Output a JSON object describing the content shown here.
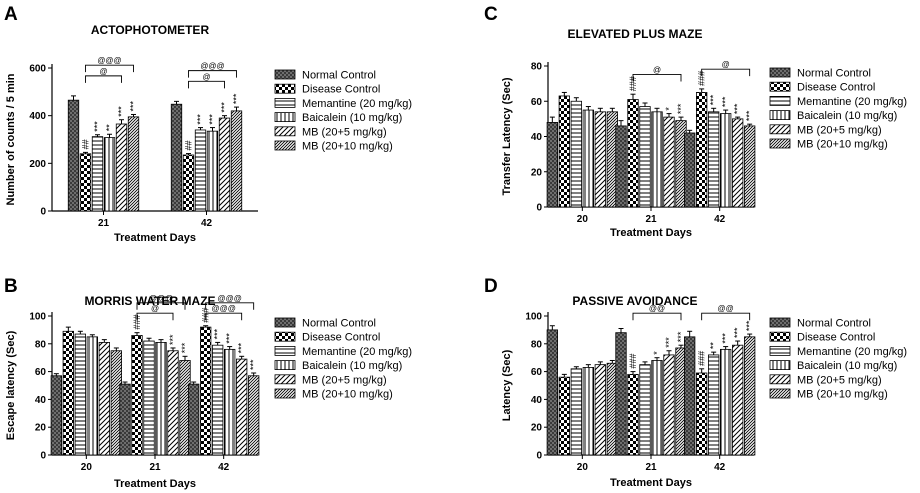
{
  "legend": [
    "Normal Control",
    "Disease Control",
    "Memantine (20 mg/kg)",
    "Baicalein (10 mg/kg)",
    "MB (20+5 mg/kg)",
    "MB (20+10 mg/kg)"
  ],
  "chart_data": [
    {
      "panel": "A",
      "type": "bar",
      "title": "ACTOPHOTOMETER",
      "xlabel": "Treatment Days",
      "ylabel": "Number of counts / 5 min",
      "ylim": [
        0,
        600
      ],
      "yticks": [
        0,
        200,
        400,
        600
      ],
      "categories": [
        "21",
        "42"
      ],
      "series": [
        {
          "name": "Normal Control",
          "values": [
            465,
            448
          ],
          "errors": [
            18,
            12
          ]
        },
        {
          "name": "Disease Control",
          "values": [
            240,
            235
          ],
          "errors": [
            6,
            6
          ]
        },
        {
          "name": "Memantine (20 mg/kg)",
          "values": [
            312,
            340
          ],
          "errors": [
            8,
            10
          ]
        },
        {
          "name": "Baicalein (10 mg/kg)",
          "values": [
            308,
            335
          ],
          "errors": [
            14,
            15
          ]
        },
        {
          "name": "MB (20+5 mg/kg)",
          "values": [
            365,
            390
          ],
          "errors": [
            18,
            10
          ]
        },
        {
          "name": "MB (20+10 mg/kg)",
          "values": [
            395,
            420
          ],
          "errors": [
            10,
            16
          ]
        }
      ],
      "significance": [
        [
          "",
          "##",
          "***",
          "**",
          "***",
          "***"
        ],
        [
          "",
          "##",
          "***",
          "***",
          "***",
          "***"
        ]
      ],
      "brackets": [
        {
          "group": 0,
          "to": 4,
          "label": "@",
          "level": 0
        },
        {
          "group": 0,
          "to": 5,
          "label": "@@@",
          "level": 1
        },
        {
          "group": 1,
          "to": 4,
          "label": "@",
          "level": 0
        },
        {
          "group": 1,
          "to": 5,
          "label": "@@@",
          "level": 1
        }
      ]
    },
    {
      "panel": "C",
      "type": "bar",
      "title": "ELEVATED PLUS MAZE",
      "xlabel": "Treatment Days",
      "ylabel": "Transfer Latency (Sec)",
      "ylim": [
        0,
        80
      ],
      "yticks": [
        0,
        20,
        40,
        60,
        80
      ],
      "categories": [
        "20",
        "21",
        "42"
      ],
      "series": [
        {
          "name": "Normal Control",
          "values": [
            48,
            46,
            42
          ],
          "errors": [
            3,
            3,
            1.5
          ]
        },
        {
          "name": "Disease Control",
          "values": [
            63,
            61,
            65
          ],
          "errors": [
            2,
            3,
            2
          ]
        },
        {
          "name": "Memantine (20 mg/kg)",
          "values": [
            60,
            57,
            54
          ],
          "errors": [
            2,
            2,
            2
          ]
        },
        {
          "name": "Baicalein (10 mg/kg)",
          "values": [
            55,
            54,
            53
          ],
          "errors": [
            2,
            2,
            2
          ]
        },
        {
          "name": "MB (20+5 mg/kg)",
          "values": [
            54,
            51,
            50
          ],
          "errors": [
            2,
            2,
            1
          ]
        },
        {
          "name": "MB (20+10 mg/kg)",
          "values": [
            54,
            49,
            46
          ],
          "errors": [
            2,
            2,
            1
          ]
        }
      ],
      "significance": [
        [
          "",
          "",
          "",
          "",
          "",
          ""
        ],
        [
          "",
          "###",
          "",
          "",
          "*",
          "***"
        ],
        [
          "",
          "###",
          "***",
          "***",
          "***",
          "***"
        ]
      ],
      "brackets": [
        {
          "group": 1,
          "to": 5,
          "label": "@",
          "level": 0
        },
        {
          "group": 2,
          "to": 5,
          "label": "@",
          "level": 0
        }
      ]
    },
    {
      "panel": "B",
      "type": "bar",
      "title": "MORRIS WATER MAZE",
      "xlabel": "Treatment Days",
      "ylabel": "Escape latency (Sec)",
      "ylim": [
        0,
        100
      ],
      "yticks": [
        0,
        20,
        40,
        60,
        80,
        100
      ],
      "categories": [
        "20",
        "21",
        "42"
      ],
      "series": [
        {
          "name": "Normal Control",
          "values": [
            57,
            51,
            51
          ],
          "errors": [
            1.5,
            1.5,
            1.5
          ]
        },
        {
          "name": "Disease Control",
          "values": [
            89,
            86,
            92
          ],
          "errors": [
            3,
            2,
            1
          ]
        },
        {
          "name": "Memantine (20 mg/kg)",
          "values": [
            87,
            82,
            79
          ],
          "errors": [
            2,
            2,
            2
          ]
        },
        {
          "name": "Baicalein (10 mg/kg)",
          "values": [
            85,
            81,
            76
          ],
          "errors": [
            1.5,
            2,
            2
          ]
        },
        {
          "name": "MB (20+5 mg/kg)",
          "values": [
            81,
            75,
            69
          ],
          "errors": [
            2,
            2,
            2
          ]
        },
        {
          "name": "MB (20+10 mg/kg)",
          "values": [
            75,
            68,
            57
          ],
          "errors": [
            2,
            3,
            2
          ]
        }
      ],
      "significance": [
        [
          "",
          "",
          "",
          "",
          "",
          ""
        ],
        [
          "",
          "###",
          "",
          "",
          "***",
          "***"
        ],
        [
          "",
          "###",
          "***",
          "***",
          "***",
          "***"
        ]
      ],
      "brackets": [
        {
          "group": 1,
          "to": 4,
          "label": "@",
          "level": 0
        },
        {
          "group": 1,
          "to": 5,
          "label": "@@@",
          "level": 1
        },
        {
          "group": 2,
          "to": 4,
          "label": "@@@",
          "level": 0
        },
        {
          "group": 2,
          "to": 5,
          "label": "@@@",
          "level": 1
        }
      ]
    },
    {
      "panel": "D",
      "type": "bar",
      "title": "PASSIVE AVOIDANCE",
      "xlabel": "Treatment Days",
      "ylabel": "Latency (Sec)",
      "ylim": [
        0,
        100
      ],
      "yticks": [
        0,
        20,
        40,
        60,
        80,
        100
      ],
      "categories": [
        "20",
        "21",
        "42"
      ],
      "series": [
        {
          "name": "Normal Control",
          "values": [
            90,
            88,
            85
          ],
          "errors": [
            3,
            3,
            4
          ]
        },
        {
          "name": "Disease Control",
          "values": [
            56,
            58,
            59
          ],
          "errors": [
            2,
            2,
            3
          ]
        },
        {
          "name": "Memantine (20 mg/kg)",
          "values": [
            62,
            65,
            72
          ],
          "errors": [
            1.5,
            2,
            2
          ]
        },
        {
          "name": "Baicalein (10 mg/kg)",
          "values": [
            63,
            68,
            76
          ],
          "errors": [
            2,
            2,
            2
          ]
        },
        {
          "name": "MB (20+5 mg/kg)",
          "values": [
            65,
            72,
            79
          ],
          "errors": [
            2,
            3,
            3
          ]
        },
        {
          "name": "MB (20+10 mg/kg)",
          "values": [
            66,
            77,
            85
          ],
          "errors": [
            2,
            2,
            2
          ]
        }
      ],
      "significance": [
        [
          "",
          "",
          "",
          "",
          "",
          ""
        ],
        [
          "",
          "###",
          "",
          "*",
          "***",
          "***"
        ],
        [
          "",
          "###",
          "**",
          "***",
          "***",
          "***"
        ]
      ],
      "brackets": [
        {
          "group": 1,
          "to": 5,
          "label": "@@",
          "level": 0
        },
        {
          "group": 2,
          "to": 5,
          "label": "@@",
          "level": 0
        }
      ]
    }
  ]
}
